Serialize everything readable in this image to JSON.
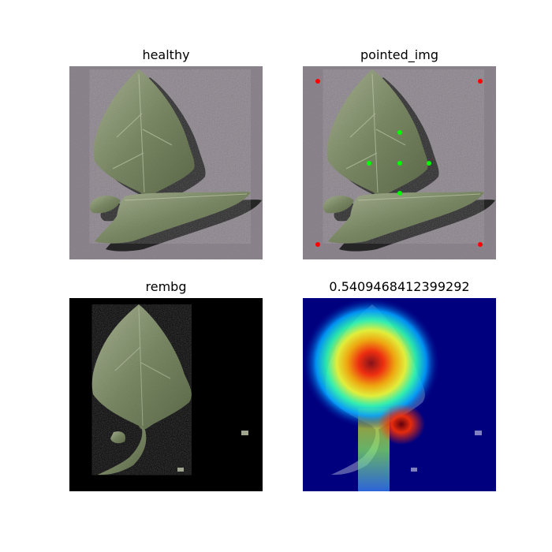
{
  "panels": [
    {
      "id": "healthy",
      "title": "healthy"
    },
    {
      "id": "pointed",
      "title": "pointed_img"
    },
    {
      "id": "rembg",
      "title": "rembg"
    },
    {
      "id": "heatmap",
      "title": "0.5409468412399292"
    }
  ],
  "markers": {
    "corner_color": "#ff0000",
    "point_color": "#00ff00"
  },
  "colors": {
    "background_gray": "#8f8790",
    "leaf_green": "#6f7c5c",
    "leaf_light": "#a2ad8c",
    "shadow": "#1d1d1d",
    "removed_bg": "#000000",
    "heatmap_base": "#00007f",
    "heatmap_hot": "#ff0000"
  }
}
